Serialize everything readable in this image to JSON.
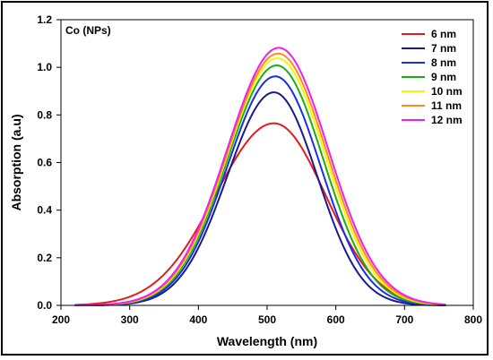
{
  "chart_data": {
    "type": "line",
    "annotation": "Co (NPs)",
    "xlabel": "Wavelength (nm)",
    "ylabel": "Absorption (a.u)",
    "xlim": [
      200,
      800
    ],
    "ylim": [
      0,
      1.2
    ],
    "x_ticks": [
      "200",
      "300",
      "400",
      "500",
      "600",
      "700",
      "800"
    ],
    "y_ticks": [
      "0.0",
      "0.2",
      "0.4",
      "0.6",
      "0.8",
      "1.0",
      "1.2"
    ],
    "grid": false,
    "legend_position": "top-right",
    "series": [
      {
        "name": "6 nm",
        "color": "#e81a1a",
        "peak_x": 510,
        "peak_y": 0.765,
        "width_left": 85,
        "width_right": 75,
        "x_range": [
          220,
          760
        ]
      },
      {
        "name": "7 nm",
        "color": "#1a1a8c",
        "peak_x": 510,
        "peak_y": 0.895,
        "width_left": 68,
        "width_right": 63,
        "x_range": [
          220,
          760
        ]
      },
      {
        "name": "8 nm",
        "color": "#1a2ee6",
        "peak_x": 512,
        "peak_y": 0.962,
        "width_left": 70,
        "width_right": 66,
        "x_range": [
          220,
          760
        ]
      },
      {
        "name": "9 nm",
        "color": "#17b017",
        "peak_x": 514,
        "peak_y": 1.008,
        "width_left": 72,
        "width_right": 68,
        "x_range": [
          220,
          760
        ]
      },
      {
        "name": "10 nm",
        "color": "#f5f500",
        "peak_x": 515,
        "peak_y": 1.038,
        "width_left": 73,
        "width_right": 70,
        "x_range": [
          220,
          760
        ]
      },
      {
        "name": "11 nm",
        "color": "#ff8c1a",
        "peak_x": 516,
        "peak_y": 1.058,
        "width_left": 74,
        "width_right": 71,
        "x_range": [
          220,
          760
        ]
      },
      {
        "name": "12 nm",
        "color": "#f01ef0",
        "peak_x": 517,
        "peak_y": 1.082,
        "width_left": 75,
        "width_right": 72,
        "x_range": [
          220,
          760
        ]
      }
    ]
  }
}
